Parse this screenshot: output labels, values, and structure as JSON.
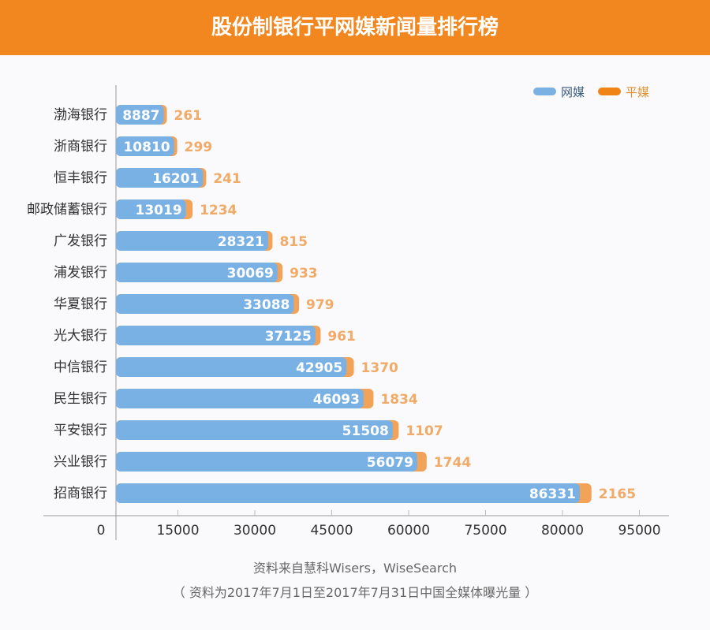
{
  "header": {
    "title": "股份制银行平网媒新闻量排行榜"
  },
  "chart_data": {
    "type": "bar",
    "orientation": "horizontal",
    "stacked": true,
    "title": "股份制银行平网媒新闻量排行榜",
    "categories": [
      "渤海银行",
      "浙商银行",
      "恒丰银行",
      "邮政储蓄银行",
      "广发银行",
      "浦发银行",
      "华夏银行",
      "光大银行",
      "中信银行",
      "民生银行",
      "平安银行",
      "兴业银行",
      "招商银行"
    ],
    "series": [
      {
        "name": "网媒",
        "color": "#7ab1e4",
        "values": [
          8887,
          10810,
          16201,
          13019,
          28321,
          30069,
          33088,
          37125,
          42905,
          46093,
          51508,
          56079,
          86331
        ]
      },
      {
        "name": "平媒",
        "color": "#f2a358",
        "values": [
          261,
          299,
          241,
          1234,
          815,
          933,
          979,
          961,
          1370,
          1834,
          1107,
          1744,
          2165
        ]
      }
    ],
    "xticks": [
      "0",
      "15000",
      "30000",
      "45000",
      "60000",
      "75000",
      "80000",
      "95000"
    ],
    "legend_position": "top-right",
    "grid": false
  },
  "footer": {
    "source": "资料来自慧科Wisers，WiseSearch",
    "note": "（ 资料为2017年7月1日至2017年7月31日中国全媒体曝光量 ）"
  }
}
